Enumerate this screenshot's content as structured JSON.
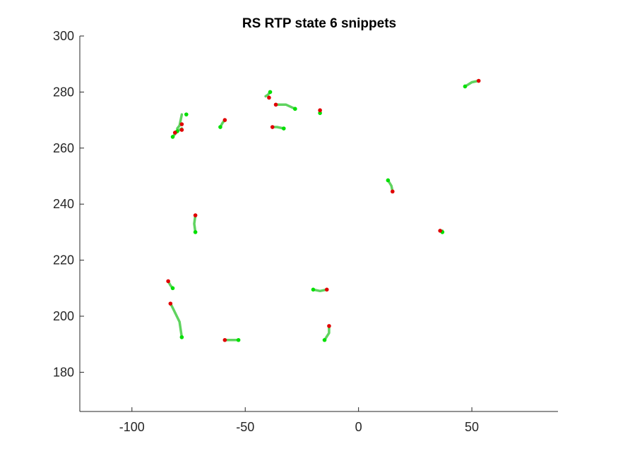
{
  "chart_data": {
    "type": "line",
    "title": "RS  RTP state 6 snippets",
    "xlabel": "",
    "ylabel": "",
    "xlim": [
      -123,
      88
    ],
    "ylim": [
      166,
      300
    ],
    "xticks": [
      -100,
      -50,
      0,
      50
    ],
    "yticks": [
      180,
      200,
      220,
      240,
      260,
      280,
      300
    ],
    "grid": false,
    "legend": "none",
    "colors": {
      "trajectory": "#5fd35f",
      "start_marker": "#00e000",
      "end_marker": "#e00000",
      "axis": "#262626"
    },
    "series": [
      {
        "points": [
          [
            -78,
            272
          ],
          [
            -79,
            268
          ],
          [
            -80,
            267
          ]
        ],
        "start": [
          -76,
          272
        ],
        "end": [
          -78,
          268.5
        ]
      },
      {
        "points": [
          [
            -82,
            264
          ],
          [
            -80,
            266
          ],
          [
            -78,
            267
          ]
        ],
        "start": [
          -82,
          264
        ],
        "end": [
          -78,
          266.5
        ]
      },
      {
        "points": [
          [
            -81,
            265.5
          ],
          [
            -80,
            266
          ]
        ],
        "start": [
          -80,
          266
        ],
        "end": [
          -81,
          265.5
        ]
      },
      {
        "points": [
          [
            -61,
            267.5
          ],
          [
            -60,
            269
          ],
          [
            -59,
            270
          ]
        ],
        "start": [
          -61,
          267.5
        ],
        "end": [
          -59,
          270
        ]
      },
      {
        "points": [
          [
            -39,
            280
          ],
          [
            -40,
            279
          ],
          [
            -41,
            278.5
          ]
        ],
        "start": [
          -39,
          280
        ],
        "end": [
          -39.5,
          278
        ]
      },
      {
        "points": [
          [
            -28,
            274
          ],
          [
            -32,
            275.5
          ],
          [
            -36,
            275.5
          ]
        ],
        "start": [
          -28,
          274
        ],
        "end": [
          -36.5,
          275.5
        ]
      },
      {
        "points": [
          [
            -33,
            267
          ],
          [
            -36,
            267.5
          ],
          [
            -38,
            267.5
          ]
        ],
        "start": [
          -33,
          267
        ],
        "end": [
          -38,
          267.5
        ]
      },
      {
        "points": [
          [
            -17,
            272.5
          ],
          [
            -17,
            273.5
          ]
        ],
        "start": [
          -17,
          272.5
        ],
        "end": [
          -17,
          273.5
        ]
      },
      {
        "points": [
          [
            47,
            282
          ],
          [
            50,
            283.5
          ],
          [
            53,
            284
          ]
        ],
        "start": [
          47,
          282
        ],
        "end": [
          53,
          284
        ]
      },
      {
        "points": [
          [
            13,
            248.5
          ],
          [
            14.5,
            246.5
          ],
          [
            15,
            244.5
          ]
        ],
        "start": [
          13,
          248.5
        ],
        "end": [
          15,
          244.5
        ]
      },
      {
        "points": [
          [
            37,
            230.5
          ],
          [
            36,
            230.5
          ]
        ],
        "start": [
          37,
          230
        ],
        "end": [
          36,
          230.5
        ]
      },
      {
        "points": [
          [
            -72,
            230
          ],
          [
            -72.5,
            233
          ],
          [
            -72,
            236
          ]
        ],
        "start": [
          -72,
          230
        ],
        "end": [
          -72,
          236
        ]
      },
      {
        "points": [
          [
            -82,
            210
          ],
          [
            -83,
            211
          ],
          [
            -84,
            212.5
          ]
        ],
        "start": [
          -82,
          210
        ],
        "end": [
          -84,
          212.5
        ]
      },
      {
        "points": [
          [
            -78,
            192.5
          ],
          [
            -79,
            198
          ],
          [
            -82,
            203
          ],
          [
            -83,
            204.5
          ]
        ],
        "start": [
          -78,
          192.5
        ],
        "end": [
          -83,
          204.5
        ]
      },
      {
        "points": [
          [
            -20,
            209.5
          ],
          [
            -17,
            209
          ],
          [
            -14,
            209.5
          ]
        ],
        "start": [
          -20,
          209.5
        ],
        "end": [
          -14,
          209.5
        ]
      },
      {
        "points": [
          [
            -53,
            191.5
          ],
          [
            -56,
            191.5
          ],
          [
            -59,
            191.5
          ]
        ],
        "start": [
          -53,
          191.5
        ],
        "end": [
          -59,
          191.5
        ]
      },
      {
        "points": [
          [
            -15,
            191.5
          ],
          [
            -13,
            194
          ],
          [
            -13,
            196.5
          ]
        ],
        "start": [
          -15,
          191.5
        ],
        "end": [
          -13,
          196.5
        ]
      }
    ]
  }
}
